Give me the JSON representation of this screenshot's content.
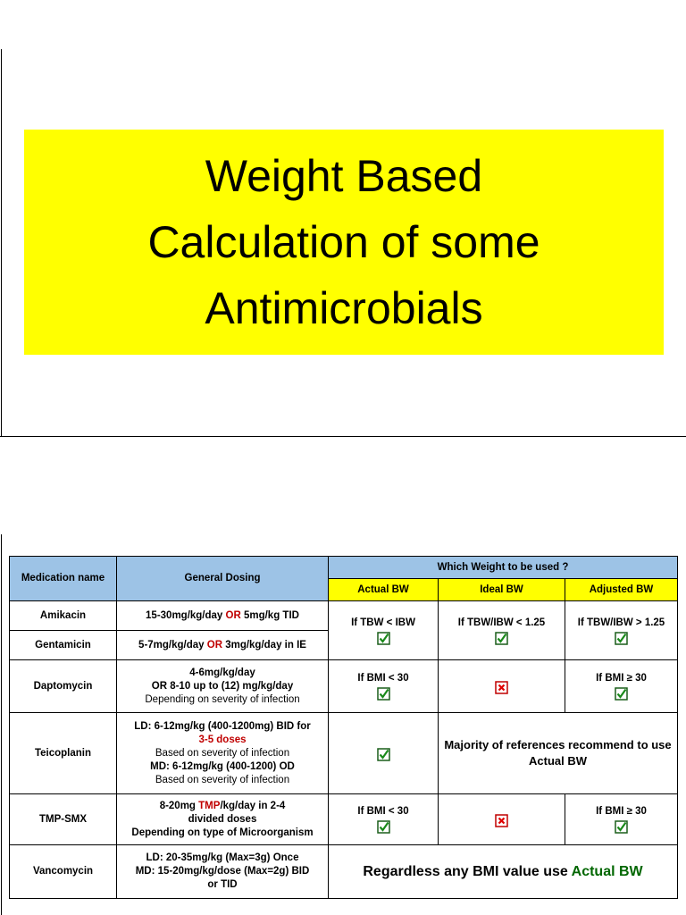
{
  "slide1": {
    "title": [
      "Weight Based",
      "Calculation of some",
      "Antimicrobials"
    ]
  },
  "table": {
    "header": {
      "medication": "Medication name",
      "dosing": "General Dosing",
      "weight_group": "Which Weight to be used ?",
      "actual": "Actual BW",
      "ideal": "Ideal BW",
      "adjusted": "Adjusted BW"
    },
    "rows": [
      {
        "name": "Amikacin",
        "dosing": [
          {
            "bold": true,
            "parts": [
              "15-30mg/kg/day ",
              {
                "text": "OR",
                "color": "#c00000"
              },
              " 5mg/kg TID"
            ]
          }
        ],
        "weights": [
          {
            "text": "If TBW < IBW",
            "mark": "check"
          },
          {
            "text": "If TBW/IBW < 1.25",
            "mark": "check"
          },
          {
            "text": "If TBW/IBW > 1.25",
            "mark": "check"
          }
        ]
      },
      {
        "name": "Gentamicin",
        "dosing": [
          {
            "bold": true,
            "parts": [
              "5-7mg/kg/day ",
              {
                "text": "OR",
                "color": "#c00000"
              },
              " 3mg/kg/day in IE"
            ]
          }
        ]
      },
      {
        "name": "Daptomycin",
        "dosing": [
          {
            "bold": true,
            "parts": [
              "4-6mg/kg/day"
            ]
          },
          {
            "bold": true,
            "parts": [
              "OR 8-10 up to (12) mg/kg/day"
            ]
          },
          {
            "bold": false,
            "parts": [
              "Depending on severity of infection"
            ]
          }
        ],
        "weights": [
          {
            "text": "If BMI < 30",
            "mark": "check"
          },
          {
            "mark": "cross"
          },
          {
            "text": "If BMI ≥ 30",
            "mark": "check"
          }
        ]
      },
      {
        "name": "Teicoplanin",
        "dosing": [
          {
            "bold": true,
            "parts": [
              "LD: 6-12mg/kg (400-1200mg) BID for"
            ]
          },
          {
            "bold": true,
            "parts": [
              {
                "text": "3-5 doses",
                "color": "#c00000"
              }
            ]
          },
          {
            "bold": false,
            "parts": [
              "Based on severity of infection"
            ]
          },
          {
            "bold": true,
            "parts": [
              "MD: 6-12mg/kg (400-1200) OD"
            ]
          },
          {
            "bold": false,
            "parts": [
              "Based on severity of infection"
            ]
          }
        ],
        "weights": [
          {
            "mark": "check"
          }
        ],
        "note": {
          "emphasis": false,
          "parts": [
            "Majority of references recommend to use Actual BW"
          ]
        }
      },
      {
        "name": "TMP-SMX",
        "dosing": [
          {
            "bold": true,
            "parts": [
              "8-20mg ",
              {
                "text": "TMP",
                "color": "#c00000"
              },
              "/kg/day in 2-4"
            ]
          },
          {
            "bold": true,
            "parts": [
              "divided doses"
            ]
          },
          {
            "bold": true,
            "parts": [
              "Depending on type of Microorganism"
            ]
          }
        ],
        "weights": [
          {
            "text": "If BMI < 30",
            "mark": "check"
          },
          {
            "mark": "cross"
          },
          {
            "text": "If BMI ≥ 30",
            "mark": "check"
          }
        ]
      },
      {
        "name": "Vancomycin",
        "dosing": [
          {
            "bold": true,
            "parts": [
              "LD: 20-35mg/kg (Max=3g) Once"
            ]
          },
          {
            "bold": true,
            "parts": [
              "MD: 15-20mg/kg/dose (Max=2g) BID"
            ]
          },
          {
            "bold": true,
            "parts": [
              "or TID"
            ]
          }
        ],
        "note": {
          "emphasis": true,
          "parts": [
            "Regardless any BMI value use ",
            {
              "text": "Actual BW",
              "color": "#006600"
            }
          ]
        }
      }
    ]
  }
}
